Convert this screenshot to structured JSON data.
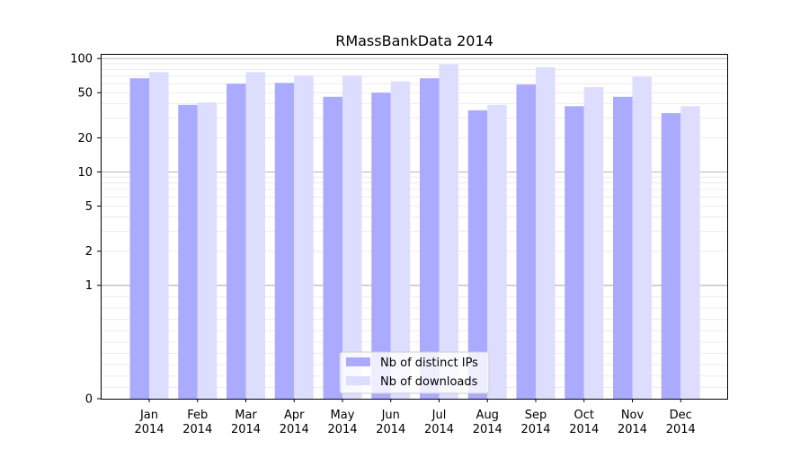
{
  "chart_data": {
    "type": "bar",
    "title": "RMassBankData 2014",
    "xlabel": "",
    "ylabel": "",
    "y_scale": "symlog",
    "ylim": [
      0,
      110
    ],
    "y_ticks": [
      0,
      1,
      2,
      5,
      10,
      20,
      50,
      100
    ],
    "y_tick_labels": [
      "0",
      "1",
      "2",
      "5",
      "10",
      "20",
      "50",
      "100"
    ],
    "grid": "horizontal",
    "legend_position": "bottom-center",
    "categories": [
      "Jan\n2014",
      "Feb\n2014",
      "Mar\n2014",
      "Apr\n2014",
      "May\n2014",
      "Jun\n2014",
      "Jul\n2014",
      "Aug\n2014",
      "Sep\n2014",
      "Oct\n2014",
      "Nov\n2014",
      "Dec\n2014"
    ],
    "category_months": [
      "Jan",
      "Feb",
      "Mar",
      "Apr",
      "May",
      "Jun",
      "Jul",
      "Aug",
      "Sep",
      "Oct",
      "Nov",
      "Dec"
    ],
    "category_years": [
      "2014",
      "2014",
      "2014",
      "2014",
      "2014",
      "2014",
      "2014",
      "2014",
      "2014",
      "2014",
      "2014",
      "2014"
    ],
    "series": [
      {
        "name": "Nb of distinct IPs",
        "color": "#aaaaff",
        "values": [
          67,
          39,
          60,
          61,
          46,
          50,
          67,
          35,
          59,
          38,
          46,
          33
        ]
      },
      {
        "name": "Nb of downloads",
        "color": "#ddddff",
        "values": [
          76,
          41,
          76,
          71,
          71,
          63,
          89,
          39,
          84,
          56,
          69,
          38
        ]
      }
    ]
  }
}
